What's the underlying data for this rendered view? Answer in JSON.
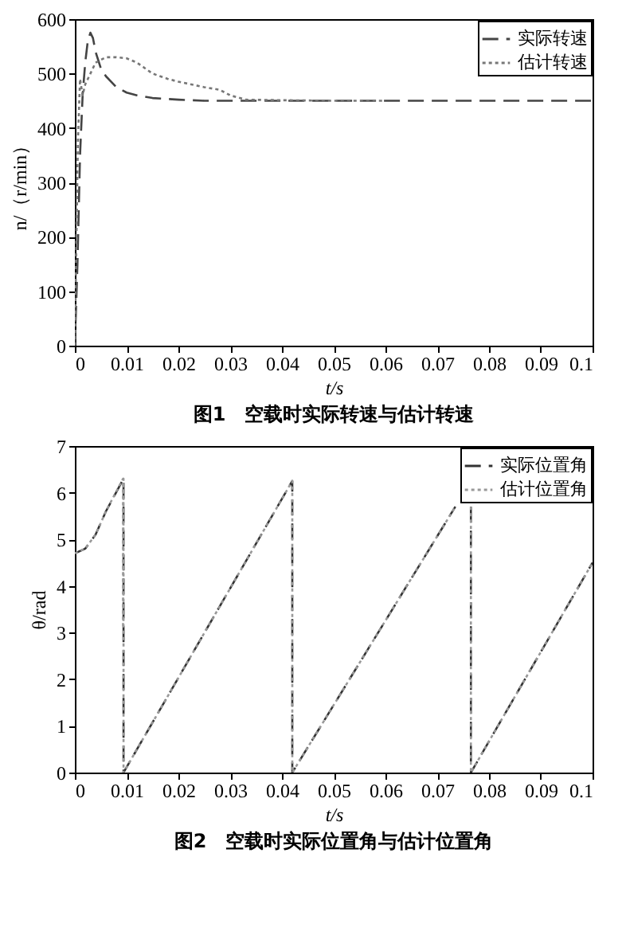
{
  "chart_data": [
    {
      "type": "line",
      "xlabel": "t/s",
      "ylabel": "n/（r/min）",
      "xlim": [
        0,
        0.1
      ],
      "ylim": [
        0,
        600
      ],
      "xticks": [
        0,
        0.01,
        0.02,
        0.03,
        0.04,
        0.05,
        0.06,
        0.07,
        0.08,
        0.09,
        0.1
      ],
      "yticks": [
        0,
        100,
        200,
        300,
        400,
        500,
        600
      ],
      "grid": false,
      "legend": "top right",
      "annotations": [
        "图1　空载时实际转速与估计转速"
      ],
      "series": [
        {
          "name": "实际转速",
          "color": "#444444",
          "line_style": "dashed",
          "x": [
            0,
            0.0005,
            0.001,
            0.0015,
            0.002,
            0.0025,
            0.003,
            0.0035,
            0.004,
            0.005,
            0.006,
            0.008,
            0.01,
            0.012,
            0.015,
            0.02,
            0.025,
            0.03,
            0.04,
            0.06,
            0.1
          ],
          "values": [
            0,
            150,
            350,
            460,
            520,
            560,
            575,
            565,
            540,
            510,
            495,
            475,
            465,
            460,
            455,
            452,
            450,
            450,
            450,
            450,
            450
          ]
        },
        {
          "name": "估计转速",
          "color": "#777777",
          "line_style": "dotted",
          "x": [
            0,
            0.0003,
            0.0006,
            0.001,
            0.0015,
            0.002,
            0.003,
            0.004,
            0.005,
            0.006,
            0.008,
            0.01,
            0.012,
            0.015,
            0.018,
            0.02,
            0.025,
            0.028,
            0.03,
            0.033,
            0.04,
            0.05,
            0.06
          ],
          "values": [
            0,
            200,
            380,
            490,
            460,
            480,
            500,
            520,
            525,
            530,
            530,
            528,
            520,
            500,
            490,
            485,
            475,
            470,
            460,
            452,
            451,
            450,
            450
          ]
        }
      ]
    },
    {
      "type": "line",
      "xlabel": "t/s",
      "ylabel": "θ/rad",
      "xlim": [
        0,
        0.1
      ],
      "ylim": [
        0,
        7
      ],
      "xticks": [
        0,
        0.01,
        0.02,
        0.03,
        0.04,
        0.05,
        0.06,
        0.07,
        0.08,
        0.09,
        0.1
      ],
      "yticks": [
        0,
        1,
        2,
        3,
        4,
        5,
        6,
        7
      ],
      "grid": false,
      "legend": "top right",
      "annotations": [
        "图2　空载时实际位置角与估计位置角"
      ],
      "series": [
        {
          "name": "实际位置角",
          "color": "#333333",
          "line_style": "dashed",
          "x": [
            0,
            0.002,
            0.004,
            0.006,
            0.0094,
            0.0094,
            0.042,
            0.042,
            0.0735,
            0.0755,
            0.0765,
            0.0765,
            0.1
          ],
          "values": [
            4.7,
            4.8,
            5.1,
            5.6,
            6.3,
            0,
            6.25,
            0,
            5.7,
            null,
            5.7,
            0,
            4.5
          ]
        },
        {
          "name": "估计位置角",
          "color": "#999999",
          "line_style": "dotted",
          "x": [
            0,
            0.002,
            0.004,
            0.006,
            0.0093,
            0.0093,
            0.0094,
            0.0094,
            0.042,
            0.042,
            0.0735,
            0.0755,
            0.0765,
            0.0765,
            0.1
          ],
          "values": [
            4.7,
            4.8,
            5.1,
            5.6,
            6.3,
            3.1,
            6.3,
            0,
            6.25,
            0,
            5.7,
            null,
            5.7,
            0,
            4.5
          ]
        }
      ]
    }
  ]
}
